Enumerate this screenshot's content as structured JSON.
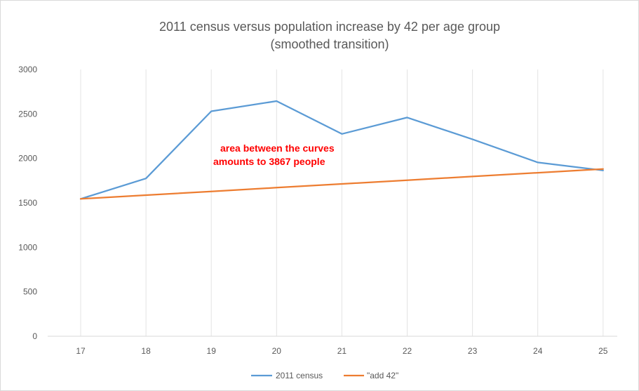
{
  "chart_data": {
    "type": "line",
    "title": "2011 census versus population increase by 42 per age group",
    "subtitle": "(smoothed transition)",
    "x": [
      17,
      18,
      19,
      20,
      21,
      22,
      23,
      24,
      25
    ],
    "series": [
      {
        "name": "2011 census",
        "color": "#5b9bd5",
        "values": [
          1545,
          1775,
          2530,
          2645,
          2275,
          2460,
          2215,
          1955,
          1865
        ]
      },
      {
        "name": "\"add 42\"",
        "color": "#ed7d31",
        "values": [
          1545,
          1587,
          1629,
          1671,
          1713,
          1755,
          1797,
          1839,
          1881
        ]
      }
    ],
    "ylim": [
      0,
      3000
    ],
    "yticks": [
      0,
      500,
      1000,
      1500,
      2000,
      2500,
      3000
    ],
    "xlabel": "",
    "ylabel": "",
    "grid": "vertical",
    "legend": "bottom",
    "annotation": {
      "line1": "area between the curves",
      "line2": "amounts to 3867 people"
    }
  }
}
